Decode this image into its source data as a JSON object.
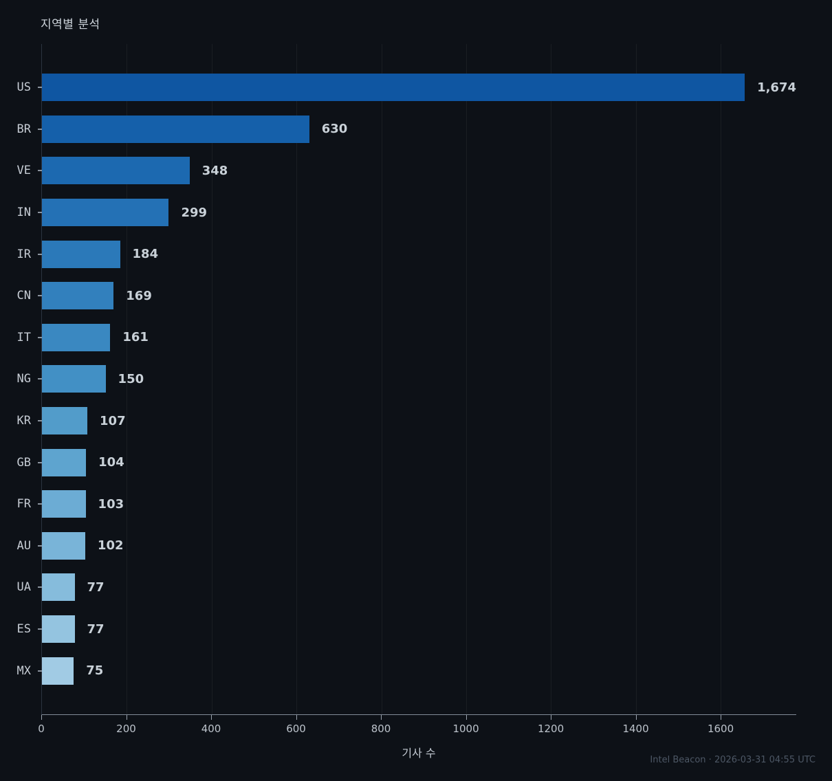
{
  "title": "지역별 분석",
  "footer": {
    "text": "Intel Beacon · 2026-03-31 04:55 UTC"
  },
  "colors": {
    "background": "#0d1117",
    "title_text": "#ccd3da",
    "axis_text": "#bcc3cb",
    "value_text": "#c9d1d8",
    "footer_text": "#4d5765",
    "gridline": "rgba(255,255,255,0.055)",
    "left_spine": "#2b3340",
    "bottom_spine": "#828c99"
  },
  "chart_data": {
    "type": "bar",
    "orientation": "horizontal",
    "title": "지역별 분석",
    "xlabel": "기사 수",
    "ylabel": "",
    "categories": [
      "US",
      "BR",
      "VE",
      "IN",
      "IR",
      "CN",
      "IT",
      "NG",
      "KR",
      "GB",
      "FR",
      "AU",
      "UA",
      "ES",
      "MX"
    ],
    "values": [
      1674,
      630,
      348,
      299,
      184,
      169,
      161,
      150,
      107,
      104,
      103,
      102,
      77,
      77,
      75
    ],
    "value_labels": [
      "1,674",
      "630",
      "348",
      "299",
      "184",
      "169",
      "161",
      "150",
      "107",
      "104",
      "103",
      "102",
      "77",
      "77",
      "75"
    ],
    "bar_colors": [
      "#0f56a2",
      "#1560aa",
      "#1c69b0",
      "#2471b5",
      "#2b79b9",
      "#3280bd",
      "#3a88c1",
      "#4290c5",
      "#529cca",
      "#5ea4cf",
      "#6cacd4",
      "#79b4d8",
      "#86bcdc",
      "#94c4e0",
      "#a1cbe4"
    ],
    "x_ticks": [
      0,
      200,
      400,
      600,
      800,
      1000,
      1200,
      1400,
      1600
    ],
    "xlim": [
      0,
      1778
    ],
    "grid": "vertical-on",
    "legend": "none"
  }
}
